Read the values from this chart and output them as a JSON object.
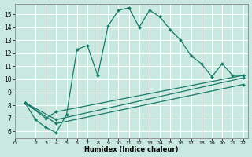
{
  "xlabel": "Humidex (Indice chaleur)",
  "bg_color": "#c8e8e0",
  "grid_color": "#ffffff",
  "line_color": "#1a7a6a",
  "xlim": [
    0,
    22.5
  ],
  "ylim": [
    5.5,
    15.8
  ],
  "xticks": [
    0,
    2,
    3,
    4,
    5,
    6,
    7,
    8,
    9,
    10,
    11,
    12,
    13,
    14,
    15,
    16,
    17,
    18,
    19,
    20,
    21,
    22
  ],
  "yticks": [
    6,
    7,
    8,
    9,
    10,
    11,
    12,
    13,
    14,
    15
  ],
  "line1_x": [
    1,
    2,
    3,
    4,
    5,
    6,
    7,
    8,
    9,
    10,
    11,
    12,
    13,
    14,
    15,
    16,
    17,
    18,
    19,
    20,
    21,
    22
  ],
  "line1_y": [
    8.2,
    6.9,
    6.3,
    5.9,
    7.3,
    12.3,
    12.6,
    10.3,
    14.1,
    15.3,
    15.5,
    14.0,
    15.3,
    14.8,
    13.8,
    13.0,
    11.8,
    11.2,
    10.2,
    11.2,
    10.3,
    10.3
  ],
  "line2_x": [
    1,
    3,
    4,
    22
  ],
  "line2_y": [
    8.2,
    7.0,
    7.5,
    10.3
  ],
  "line3_x": [
    1,
    4,
    22
  ],
  "line3_y": [
    8.2,
    6.9,
    10.1
  ],
  "line4_x": [
    1,
    4,
    22
  ],
  "line4_y": [
    8.2,
    6.6,
    9.6
  ]
}
